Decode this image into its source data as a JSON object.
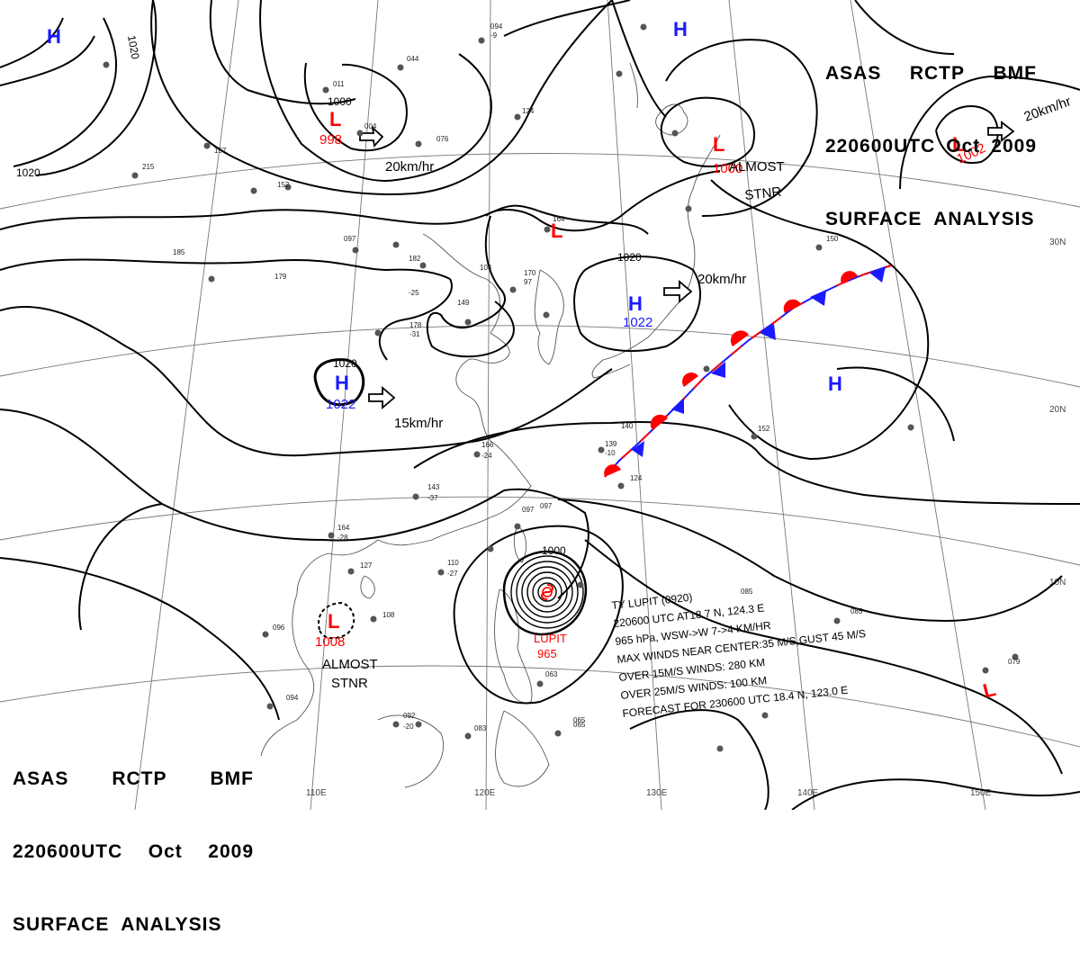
{
  "header": {
    "line1": [
      "ASAS",
      "RCTP",
      "BMF"
    ],
    "line2": [
      "220600UTC",
      "Oct",
      "2009"
    ],
    "line3": "SURFACE  ANALYSIS"
  },
  "footer": {
    "line1": [
      "ASAS",
      "RCTP",
      "BMF"
    ],
    "line2": [
      "220600UTC",
      "Oct",
      "2009"
    ],
    "line3": "SURFACE  ANALYSIS"
  },
  "colors": {
    "high": "#1a1aff",
    "low": "#ff0000",
    "isobar": "#000000",
    "coast": "#555555",
    "grid": "#777777"
  },
  "grid_labels": {
    "lon": [
      "110E",
      "120E",
      "130E",
      "140E",
      "150E"
    ],
    "lat": [
      "30N",
      "20N",
      "10N"
    ]
  },
  "pressure_systems": [
    {
      "type": "H",
      "symbol": "H",
      "value": "",
      "color": "high"
    },
    {
      "type": "L",
      "symbol": "L",
      "value": "998",
      "color": "low"
    },
    {
      "type": "L",
      "symbol": "L",
      "value": "1000",
      "color": "low"
    },
    {
      "type": "L",
      "symbol": "L",
      "value": "1002",
      "color": "low"
    },
    {
      "type": "H",
      "symbol": "H",
      "value": "",
      "color": "high"
    },
    {
      "type": "L",
      "symbol": "L",
      "value": "",
      "color": "low"
    },
    {
      "type": "H",
      "symbol": "H",
      "value": "1022",
      "color": "high"
    },
    {
      "type": "H",
      "symbol": "H",
      "value": "1022",
      "color": "high"
    },
    {
      "type": "H",
      "symbol": "H",
      "value": "",
      "color": "high"
    },
    {
      "type": "L",
      "symbol": "L",
      "value": "1008",
      "color": "low"
    },
    {
      "type": "L",
      "symbol": "L",
      "value": "",
      "color": "low"
    }
  ],
  "isobar_labels": [
    "1020",
    "1020",
    "1000",
    "1020",
    "1020",
    "1000"
  ],
  "motion_labels": [
    "20km/hr",
    "20km/hr",
    "20km/hr",
    "15km/hr"
  ],
  "motion_notes": [
    {
      "line1": "ALMOST",
      "line2": "STNR"
    },
    {
      "line1": "ALMOST",
      "line2": "STNR"
    }
  ],
  "typhoon": {
    "name": "LUPIT",
    "pressure": "965",
    "info": [
      "TY LUPIT (0920)",
      "220600 UTC  AT18.7 N, 124.3 E",
      "965 hPa, WSW->W  7->4 KM/HR",
      "MAX WINDS NEAR CENTER:35 M/S,GUST 45 M/S",
      "OVER 15M/S WINDS: 280 KM",
      "OVER 25M/S WINDS: 100 KM",
      "FORECAST FOR 230600 UTC 18.4 N, 123.0 E"
    ]
  },
  "station_reports": [
    "094",
    "-9",
    "044",
    "011",
    "004",
    "076",
    "124",
    "164",
    "170",
    "97",
    "185",
    "157",
    "152",
    "215",
    "097",
    "182",
    "179",
    "-25",
    "149",
    "104",
    "178",
    "-31",
    "166",
    "-24",
    "143",
    "-37",
    "164",
    "-28",
    "127",
    "110",
    "-27",
    "108",
    "096",
    "094",
    "092",
    "-20",
    "083",
    "065",
    "063",
    "097",
    "140",
    "124",
    "139",
    "-10",
    "152",
    "150",
    "085",
    "079",
    "085",
    "097",
    "065"
  ]
}
